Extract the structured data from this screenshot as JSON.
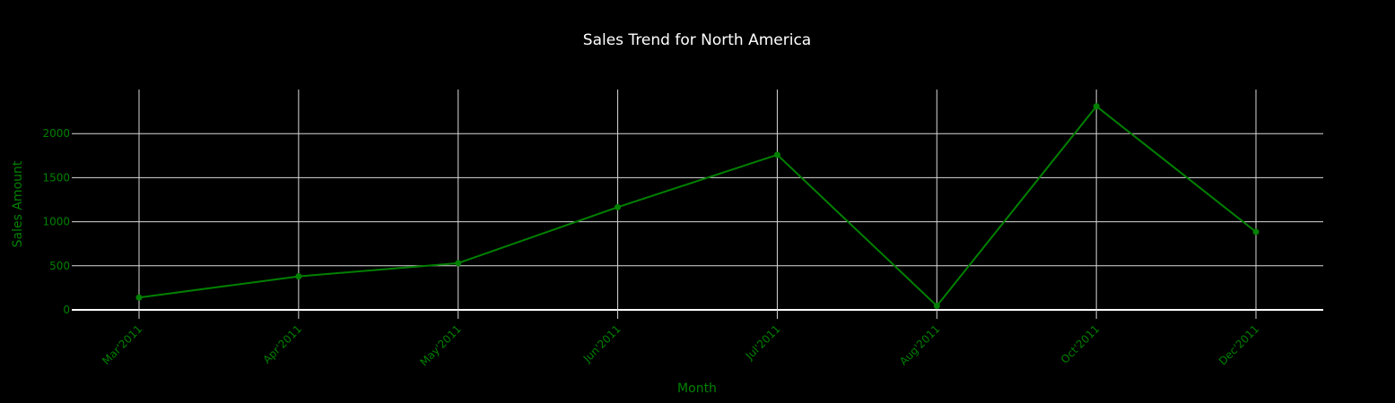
{
  "chart_data": {
    "type": "line",
    "title": "Sales Trend for North America",
    "xlabel": "Month",
    "ylabel": "Sales Amount",
    "categories": [
      "Mar'2011",
      "Apr'2011",
      "May'2011",
      "Jun'2011",
      "Jul'2011",
      "Aug'2011",
      "Oct'2011",
      "Dec'2011"
    ],
    "series": [
      {
        "values": [
          140,
          380,
          530,
          1165,
          1760,
          45,
          2310,
          885
        ]
      }
    ],
    "ylim": [
      0,
      2500
    ],
    "yticks": [
      "0",
      "500",
      "1000",
      "1500",
      "2000"
    ],
    "grid": true,
    "legend": "none",
    "colors": {
      "background": "#000000",
      "line": "#008000",
      "grid": "#d9d9d9",
      "title": "#ffffff",
      "axis_text": "#008000",
      "zero_line": "#ffffff"
    }
  }
}
